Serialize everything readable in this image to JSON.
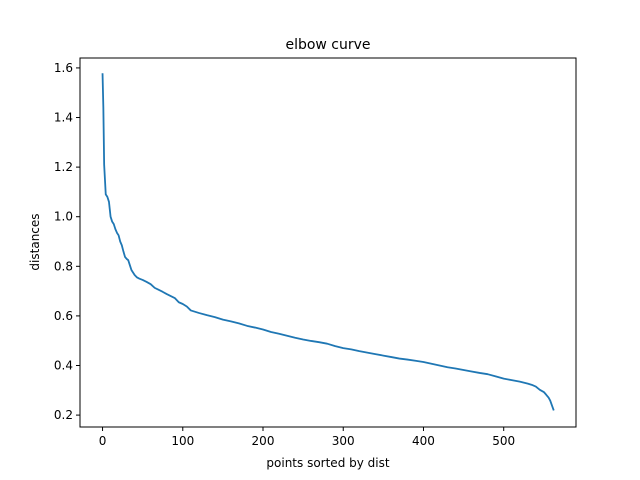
{
  "chart_data": {
    "type": "line",
    "title": "elbow curve",
    "xlabel": "points sorted by dist",
    "ylabel": "distances",
    "xlim": [
      -28.1,
      590.1
    ],
    "ylim": [
      0.152,
      1.64
    ],
    "xticks": [
      0,
      100,
      200,
      300,
      400,
      500
    ],
    "yticks": [
      0.2,
      0.4,
      0.6,
      0.8,
      1.0,
      1.2,
      1.4,
      1.6
    ],
    "xtick_labels": [
      "0",
      "100",
      "200",
      "300",
      "400",
      "500"
    ],
    "ytick_labels": [
      "0.2",
      "0.4",
      "0.6",
      "0.8",
      "1.0",
      "1.2",
      "1.4",
      "1.6"
    ],
    "grid": false,
    "color": "#1f77b4",
    "series": [
      {
        "x": [
          0,
          1,
          2,
          3,
          4,
          6,
          8,
          9,
          10,
          12,
          14,
          16,
          18,
          20,
          22,
          24,
          26,
          28,
          30,
          32,
          34,
          36,
          38,
          40,
          43,
          46,
          50,
          55,
          60,
          65,
          70,
          75,
          80,
          85,
          90,
          95,
          100,
          105,
          110,
          115,
          120,
          130,
          140,
          150,
          160,
          170,
          180,
          190,
          200,
          210,
          220,
          230,
          240,
          250,
          260,
          270,
          280,
          290,
          300,
          310,
          320,
          330,
          340,
          350,
          360,
          370,
          380,
          390,
          400,
          410,
          420,
          430,
          440,
          450,
          460,
          470,
          480,
          490,
          500,
          510,
          520,
          530,
          535,
          540,
          545,
          550,
          553,
          556,
          558,
          560,
          562
        ],
        "y": [
          1.575,
          1.44,
          1.21,
          1.15,
          1.09,
          1.08,
          1.06,
          1.03,
          1.0,
          0.98,
          0.97,
          0.95,
          0.935,
          0.925,
          0.9,
          0.885,
          0.86,
          0.838,
          0.83,
          0.825,
          0.805,
          0.785,
          0.775,
          0.765,
          0.755,
          0.75,
          0.745,
          0.737,
          0.728,
          0.713,
          0.705,
          0.697,
          0.688,
          0.68,
          0.672,
          0.655,
          0.648,
          0.638,
          0.622,
          0.617,
          0.612,
          0.603,
          0.595,
          0.585,
          0.578,
          0.57,
          0.56,
          0.553,
          0.545,
          0.535,
          0.528,
          0.52,
          0.512,
          0.505,
          0.499,
          0.494,
          0.488,
          0.478,
          0.47,
          0.465,
          0.458,
          0.452,
          0.446,
          0.44,
          0.434,
          0.428,
          0.424,
          0.419,
          0.414,
          0.407,
          0.4,
          0.393,
          0.388,
          0.382,
          0.376,
          0.37,
          0.365,
          0.356,
          0.347,
          0.341,
          0.335,
          0.327,
          0.322,
          0.315,
          0.302,
          0.293,
          0.282,
          0.27,
          0.258,
          0.24,
          0.222
        ]
      }
    ]
  }
}
